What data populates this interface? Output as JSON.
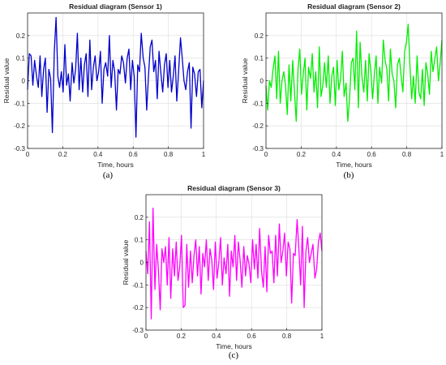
{
  "chart_data": [
    {
      "type": "line",
      "title": "Residual diagram (Sensor 1)",
      "xlabel": "Time, hours",
      "ylabel": "Residual value",
      "caption": "(a)",
      "xlim": [
        0,
        1
      ],
      "ylim": [
        -0.3,
        0.3
      ],
      "xticks": [
        0,
        0.2,
        0.4,
        0.6,
        0.8,
        1
      ],
      "xtick_labels": [
        "0",
        "0.2",
        "0.4",
        "0.6",
        "0.8",
        "1"
      ],
      "yticks": [
        -0.3,
        -0.2,
        -0.1,
        0,
        0.1,
        0.2
      ],
      "ytick_labels": [
        "-0.3",
        "-0.2",
        "-0.1",
        "0",
        "0.1",
        "0.2"
      ],
      "grid": true,
      "color": "#0000cc",
      "series": [
        {
          "x": [
            0.0,
            0.01,
            0.02,
            0.03,
            0.04,
            0.051,
            0.061,
            0.071,
            0.081,
            0.091,
            0.101,
            0.111,
            0.121,
            0.131,
            0.141,
            0.152,
            0.162,
            0.172,
            0.182,
            0.192,
            0.202,
            0.212,
            0.222,
            0.232,
            0.242,
            0.253,
            0.263,
            0.273,
            0.283,
            0.293,
            0.303,
            0.313,
            0.323,
            0.333,
            0.343,
            0.354,
            0.364,
            0.374,
            0.384,
            0.394,
            0.404,
            0.414,
            0.424,
            0.434,
            0.444,
            0.455,
            0.465,
            0.475,
            0.485,
            0.495,
            0.505,
            0.515,
            0.525,
            0.535,
            0.545,
            0.556,
            0.566,
            0.576,
            0.586,
            0.596,
            0.606,
            0.616,
            0.626,
            0.636,
            0.646,
            0.657,
            0.667,
            0.677,
            0.687,
            0.697,
            0.707,
            0.717,
            0.727,
            0.737,
            0.747,
            0.758,
            0.768,
            0.778,
            0.788,
            0.798,
            0.808,
            0.818,
            0.828,
            0.838,
            0.848,
            0.859,
            0.869,
            0.879,
            0.889,
            0.899,
            0.909,
            0.919,
            0.929,
            0.939,
            0.949,
            0.96,
            0.97,
            0.98,
            0.99,
            1.0
          ],
          "y": [
            -0.04,
            0.12,
            0.11,
            -0.02,
            0.09,
            0.02,
            -0.03,
            0.11,
            -0.07,
            0.05,
            0.1,
            -0.14,
            0.05,
            0.01,
            -0.23,
            0.13,
            0.28,
            0.02,
            -0.03,
            0.04,
            -0.05,
            0.16,
            -0.02,
            0.03,
            -0.09,
            0.08,
            -0.01,
            0.05,
            0.21,
            -0.04,
            0.1,
            -0.05,
            0.07,
            0.12,
            -0.07,
            0.18,
            -0.04,
            0.06,
            0.11,
            0.0,
            0.04,
            0.13,
            -0.1,
            0.05,
            0.08,
            0.02,
            0.2,
            -0.03,
            0.09,
            0.04,
            -0.13,
            0.05,
            0.03,
            0.11,
            0.08,
            -0.01,
            0.1,
            0.14,
            -0.04,
            0.09,
            0.02,
            -0.25,
            0.07,
            0.04,
            0.21,
            0.1,
            0.06,
            -0.13,
            0.02,
            0.15,
            0.18,
            0.04,
            0.09,
            -0.08,
            0.13,
            0.03,
            -0.05,
            0.07,
            0.12,
            -0.03,
            0.09,
            -0.05,
            0.02,
            0.11,
            -0.09,
            0.05,
            0.19,
            0.1,
            0.0,
            -0.04,
            0.04,
            0.08,
            -0.21,
            0.06,
            0.03,
            -0.07,
            0.04,
            0.05,
            -0.12,
            0.0
          ]
        }
      ]
    },
    {
      "type": "line",
      "title": "Residual diagram (Sensor 2)",
      "xlabel": "Time, hours",
      "ylabel": "Residual value",
      "caption": "(b)",
      "xlim": [
        0,
        1
      ],
      "ylim": [
        -0.3,
        0.3
      ],
      "xticks": [
        0,
        0.2,
        0.4,
        0.6,
        0.8,
        1
      ],
      "xtick_labels": [
        "0",
        "0.2",
        "0.4",
        "0.6",
        "0.8",
        "1"
      ],
      "yticks": [
        -0.3,
        -0.2,
        -0.1,
        0,
        0.1,
        0.2
      ],
      "ytick_labels": [
        "-0.3",
        "-0.2",
        "-0.1",
        "0",
        "0.1",
        "0.2"
      ],
      "grid": true,
      "color": "#00ee00",
      "series": [
        {
          "x": [
            0.0,
            0.01,
            0.02,
            0.03,
            0.04,
            0.051,
            0.061,
            0.071,
            0.081,
            0.091,
            0.101,
            0.111,
            0.121,
            0.131,
            0.141,
            0.152,
            0.162,
            0.172,
            0.182,
            0.192,
            0.202,
            0.212,
            0.222,
            0.232,
            0.242,
            0.253,
            0.263,
            0.273,
            0.283,
            0.293,
            0.303,
            0.313,
            0.323,
            0.333,
            0.343,
            0.354,
            0.364,
            0.374,
            0.384,
            0.394,
            0.404,
            0.414,
            0.424,
            0.434,
            0.444,
            0.455,
            0.465,
            0.475,
            0.485,
            0.495,
            0.505,
            0.515,
            0.525,
            0.535,
            0.545,
            0.556,
            0.566,
            0.576,
            0.586,
            0.596,
            0.606,
            0.616,
            0.626,
            0.636,
            0.646,
            0.657,
            0.667,
            0.677,
            0.687,
            0.697,
            0.707,
            0.717,
            0.727,
            0.737,
            0.747,
            0.758,
            0.768,
            0.778,
            0.788,
            0.798,
            0.808,
            0.818,
            0.828,
            0.838,
            0.848,
            0.859,
            0.869,
            0.879,
            0.889,
            0.899,
            0.909,
            0.919,
            0.929,
            0.939,
            0.949,
            0.96,
            0.97,
            0.98,
            0.99,
            1.0
          ],
          "y": [
            -0.02,
            -0.13,
            0.0,
            -0.03,
            0.05,
            0.11,
            -0.08,
            0.13,
            -0.1,
            0.0,
            0.04,
            -0.02,
            -0.15,
            0.07,
            -0.09,
            0.09,
            -0.05,
            -0.18,
            0.05,
            0.14,
            -0.06,
            0.03,
            0.1,
            -0.13,
            0.06,
            0.01,
            0.12,
            -0.05,
            0.04,
            -0.12,
            0.15,
            -0.07,
            -0.02,
            0.08,
            -0.03,
            0.11,
            -0.1,
            0.02,
            0.06,
            -0.11,
            0.09,
            -0.04,
            0.01,
            0.13,
            -0.07,
            -0.01,
            -0.18,
            -0.08,
            0.08,
            0.1,
            -0.04,
            0.22,
            -0.12,
            0.17,
            0.02,
            -0.05,
            0.09,
            -0.09,
            0.12,
            0.04,
            -0.08,
            0.03,
            0.11,
            -0.1,
            0.06,
            -0.01,
            0.18,
            0.09,
            0.05,
            -0.09,
            0.14,
            0.03,
            0.0,
            -0.12,
            0.07,
            0.1,
            0.02,
            -0.05,
            0.13,
            0.17,
            0.25,
            0.07,
            -0.08,
            0.02,
            -0.1,
            0.11,
            -0.05,
            -0.08,
            0.05,
            -0.11,
            0.08,
            0.03,
            -0.06,
            0.13,
            0.04,
            0.1,
            0.15,
            0.0,
            0.08,
            0.18
          ]
        }
      ]
    },
    {
      "type": "line",
      "title": "Residual diagram (Sensor 3)",
      "xlabel": "Time, hours",
      "ylabel": "Residual value",
      "caption": "(c)",
      "xlim": [
        0,
        1
      ],
      "ylim": [
        -0.3,
        0.3
      ],
      "xticks": [
        0,
        0.2,
        0.4,
        0.6,
        0.8,
        1
      ],
      "xtick_labels": [
        "0",
        "0.2",
        "0.4",
        "0.6",
        "0.8",
        "1"
      ],
      "yticks": [
        -0.3,
        -0.2,
        -0.1,
        0,
        0.1,
        0.2
      ],
      "ytick_labels": [
        "-0.3",
        "-0.2",
        "-0.1",
        "0",
        "0.1",
        "0.2"
      ],
      "grid": true,
      "color": "#ff00ff",
      "series": [
        {
          "x": [
            0.0,
            0.01,
            0.02,
            0.03,
            0.04,
            0.051,
            0.061,
            0.071,
            0.081,
            0.091,
            0.101,
            0.111,
            0.121,
            0.131,
            0.141,
            0.152,
            0.162,
            0.172,
            0.182,
            0.192,
            0.202,
            0.212,
            0.222,
            0.232,
            0.242,
            0.253,
            0.263,
            0.273,
            0.283,
            0.293,
            0.303,
            0.313,
            0.323,
            0.333,
            0.343,
            0.354,
            0.364,
            0.374,
            0.384,
            0.394,
            0.404,
            0.414,
            0.424,
            0.434,
            0.444,
            0.455,
            0.465,
            0.475,
            0.485,
            0.495,
            0.505,
            0.515,
            0.525,
            0.535,
            0.545,
            0.556,
            0.566,
            0.576,
            0.586,
            0.596,
            0.606,
            0.616,
            0.626,
            0.636,
            0.646,
            0.657,
            0.667,
            0.677,
            0.687,
            0.697,
            0.707,
            0.717,
            0.727,
            0.737,
            0.747,
            0.758,
            0.768,
            0.778,
            0.788,
            0.798,
            0.808,
            0.818,
            0.828,
            0.838,
            0.848,
            0.859,
            0.869,
            0.879,
            0.889,
            0.899,
            0.909,
            0.919,
            0.929,
            0.939,
            0.949,
            0.96,
            0.97,
            0.98,
            0.99,
            1.0
          ],
          "y": [
            0.05,
            -0.05,
            0.18,
            -0.25,
            0.24,
            -0.12,
            0.08,
            -0.04,
            -0.21,
            0.06,
            0.0,
            0.07,
            -0.1,
            0.11,
            -0.16,
            0.06,
            -0.06,
            0.09,
            -0.08,
            -0.02,
            0.12,
            -0.2,
            -0.19,
            0.08,
            -0.11,
            0.05,
            -0.09,
            0.03,
            0.1,
            -0.06,
            0.07,
            -0.14,
            0.04,
            -0.02,
            0.1,
            -0.08,
            0.06,
            0.01,
            -0.12,
            0.09,
            -0.07,
            0.0,
            0.11,
            -0.1,
            0.02,
            -0.05,
            0.08,
            -0.15,
            0.05,
            -0.02,
            0.12,
            -0.08,
            0.09,
            0.01,
            -0.11,
            0.07,
            -0.06,
            0.03,
            -0.01,
            -0.09,
            0.1,
            -0.03,
            0.08,
            -0.07,
            0.15,
            -0.04,
            -0.11,
            0.07,
            -0.13,
            0.12,
            0.04,
            0.05,
            -0.09,
            0.12,
            -0.06,
            0.17,
            0.0,
            0.05,
            0.13,
            -0.06,
            0.09,
            0.06,
            -0.18,
            0.04,
            0.03,
            0.19,
            0.06,
            -0.1,
            0.16,
            -0.2,
            0.05,
            0.11,
            0.0,
            0.04,
            0.08,
            -0.07,
            -0.03,
            0.09,
            0.13,
            0.05
          ]
        }
      ]
    }
  ]
}
